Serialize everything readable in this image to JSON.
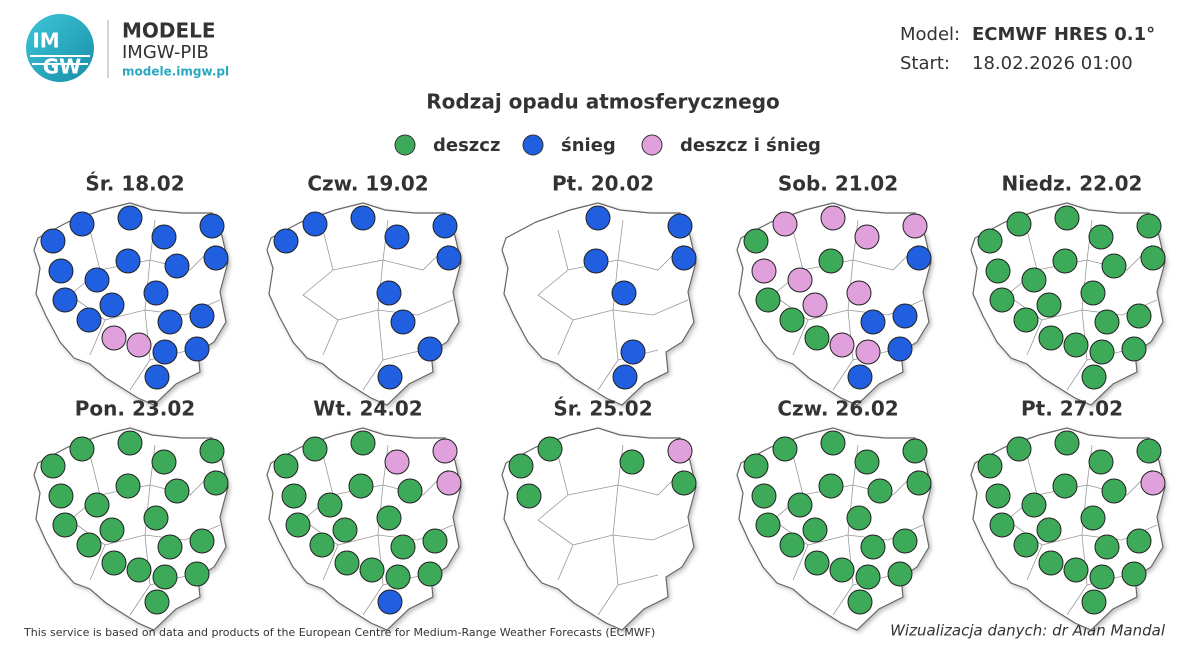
{
  "header": {
    "logo_mark": [
      "IM",
      "GW"
    ],
    "logo_title": "MODELE",
    "logo_subtitle": "IMGW-PIB",
    "logo_url": "modele.imgw.pl",
    "model_label": "Model:",
    "model_value": "ECMWF HRES 0.1°",
    "start_label": "Start:",
    "start_value": "18.02.2026 01:00"
  },
  "title": "Rodzaj opadu atmosferycznego",
  "legend": [
    {
      "label": "deszcz",
      "color": "#3daa5a"
    },
    {
      "label": "śnieg",
      "color": "#1f5fe0"
    },
    {
      "label": "deszcz i śnieg",
      "color": "#e0a0dc"
    }
  ],
  "days": [
    {
      "title": "Śr. 18.02",
      "dots": [
        1,
        1,
        1,
        1,
        1,
        1,
        1,
        1,
        1,
        1,
        1,
        1,
        1,
        1,
        1,
        1,
        2,
        2,
        1,
        1,
        1
      ]
    },
    {
      "title": "Czw. 19.02",
      "dots": [
        1,
        1,
        1,
        1,
        1,
        1,
        null,
        null,
        null,
        null,
        null,
        null,
        1,
        null,
        1,
        null,
        null,
        null,
        null,
        1,
        1
      ]
    },
    {
      "title": "Pt. 20.02",
      "dots": [
        null,
        null,
        1,
        null,
        1,
        1,
        null,
        null,
        1,
        null,
        null,
        null,
        1,
        null,
        null,
        null,
        null,
        null,
        1,
        null,
        1
      ]
    },
    {
      "title": "Sob. 21.02",
      "dots": [
        0,
        2,
        2,
        2,
        2,
        1,
        2,
        2,
        0,
        null,
        0,
        2,
        2,
        0,
        1,
        1,
        0,
        2,
        2,
        1,
        1
      ]
    },
    {
      "title": "Niedz. 22.02",
      "dots": [
        0,
        0,
        0,
        0,
        0,
        0,
        0,
        0,
        0,
        0,
        0,
        0,
        0,
        0,
        0,
        0,
        0,
        0,
        0,
        0,
        0
      ]
    },
    {
      "title": "Pon. 23.02",
      "dots": [
        0,
        0,
        0,
        0,
        0,
        0,
        0,
        0,
        0,
        0,
        0,
        0,
        0,
        0,
        0,
        0,
        0,
        0,
        0,
        0,
        0
      ]
    },
    {
      "title": "Wt. 24.02",
      "dots": [
        0,
        0,
        0,
        2,
        2,
        2,
        0,
        0,
        0,
        0,
        0,
        0,
        0,
        0,
        0,
        0,
        0,
        0,
        0,
        0,
        1
      ]
    },
    {
      "title": "Śr. 25.02",
      "dots": [
        0,
        0,
        null,
        0,
        2,
        0,
        0,
        null,
        null,
        null,
        null,
        null,
        null,
        null,
        null,
        null,
        null,
        null,
        null,
        null,
        null
      ]
    },
    {
      "title": "Czw. 26.02",
      "dots": [
        0,
        0,
        0,
        0,
        0,
        0,
        0,
        0,
        0,
        0,
        0,
        0,
        0,
        0,
        0,
        0,
        0,
        0,
        0,
        0,
        0
      ]
    },
    {
      "title": "Pt. 27.02",
      "dots": [
        0,
        0,
        0,
        0,
        0,
        2,
        0,
        0,
        0,
        0,
        0,
        0,
        0,
        0,
        0,
        0,
        0,
        0,
        0,
        0,
        0
      ]
    }
  ],
  "footer": {
    "source": "This service is based on data and products of the European Centre for Medium-Range Weather Forecasts (ECMWF)",
    "credit": "Wizualizacja danych: dr Alan Mandal"
  }
}
